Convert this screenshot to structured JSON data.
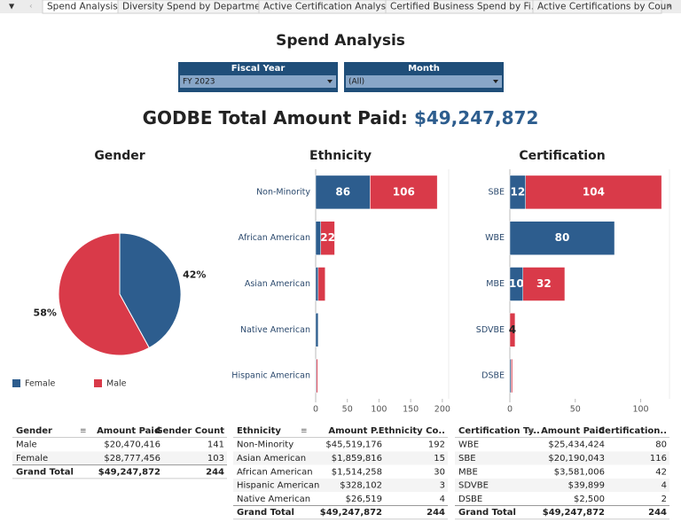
{
  "tabs": [
    "Spend Analysis",
    "Diversity Spend by Department",
    "Active Certification Analysis",
    "Certified Business Spend by Fi...",
    "Active Certifications by Coun"
  ],
  "header": {
    "title": "Spend Analysis"
  },
  "filters": [
    {
      "label": "Fiscal Year",
      "value": "FY 2023"
    },
    {
      "label": "Month",
      "value": "(All)"
    }
  ],
  "kpi": {
    "label": "GODBE Total Amount Paid:",
    "value": "$49,247,872"
  },
  "chart_data": [
    {
      "type": "pie",
      "title": "Gender",
      "categories": [
        "Female",
        "Male"
      ],
      "values": [
        42,
        58
      ],
      "value_labels": [
        "42%",
        "58%"
      ],
      "colors": [
        "#2d5d8e",
        "#d93a49"
      ],
      "legend": "bottom-left"
    },
    {
      "type": "bar",
      "title": "Ethnicity",
      "orientation": "horizontal",
      "stacked": true,
      "categories": [
        "Non-Minority",
        "African American",
        "Asian American",
        "Native American",
        "Hispanic American"
      ],
      "series": [
        {
          "color": "#2d5d8e",
          "values": [
            86,
            8,
            4,
            4,
            1
          ]
        },
        {
          "color": "#d93a49",
          "values": [
            106,
            22,
            11,
            0,
            2
          ]
        }
      ],
      "xlim": [
        0,
        210
      ],
      "xticks": [
        0,
        50,
        100,
        150,
        200
      ]
    },
    {
      "type": "bar",
      "title": "Certification",
      "orientation": "horizontal",
      "stacked": true,
      "categories": [
        "SBE",
        "WBE",
        "MBE",
        "SDVBE",
        "DSBE"
      ],
      "series": [
        {
          "color": "#2d5d8e",
          "values": [
            12,
            80,
            10,
            0,
            1
          ]
        },
        {
          "color": "#d93a49",
          "values": [
            104,
            0,
            32,
            4,
            1
          ]
        }
      ],
      "xlim": [
        0,
        122
      ],
      "xticks": [
        0,
        50,
        100
      ]
    }
  ],
  "tables": [
    {
      "columns": [
        "Gender",
        "Amount Paid",
        "Gender Count"
      ],
      "rows": [
        [
          "Male",
          "$20,470,416",
          141
        ],
        [
          "Female",
          "$28,777,456",
          103
        ]
      ],
      "total": [
        "Grand Total",
        "$49,247,872",
        244
      ]
    },
    {
      "columns": [
        "Ethnicity",
        "Amount P..",
        "Ethnicity Co.."
      ],
      "rows": [
        [
          "Non-Minority",
          "$45,519,176",
          192
        ],
        [
          "Asian American",
          "$1,859,816",
          15
        ],
        [
          "African American",
          "$1,514,258",
          30
        ],
        [
          "Hispanic American",
          "$328,102",
          3
        ],
        [
          "Native American",
          "$26,519",
          4
        ]
      ],
      "total": [
        "Grand Total",
        "$49,247,872",
        244
      ]
    },
    {
      "columns": [
        "Certification Ty..",
        "Amount Paid",
        "Certification.."
      ],
      "rows": [
        [
          "WBE",
          "$25,434,424",
          80
        ],
        [
          "SBE",
          "$20,190,043",
          116
        ],
        [
          "MBE",
          "$3,581,006",
          42
        ],
        [
          "SDVBE",
          "$39,899",
          4
        ],
        [
          "DSBE",
          "$2,500",
          2
        ]
      ],
      "total": [
        "Grand Total",
        "$49,247,872",
        244
      ]
    }
  ]
}
